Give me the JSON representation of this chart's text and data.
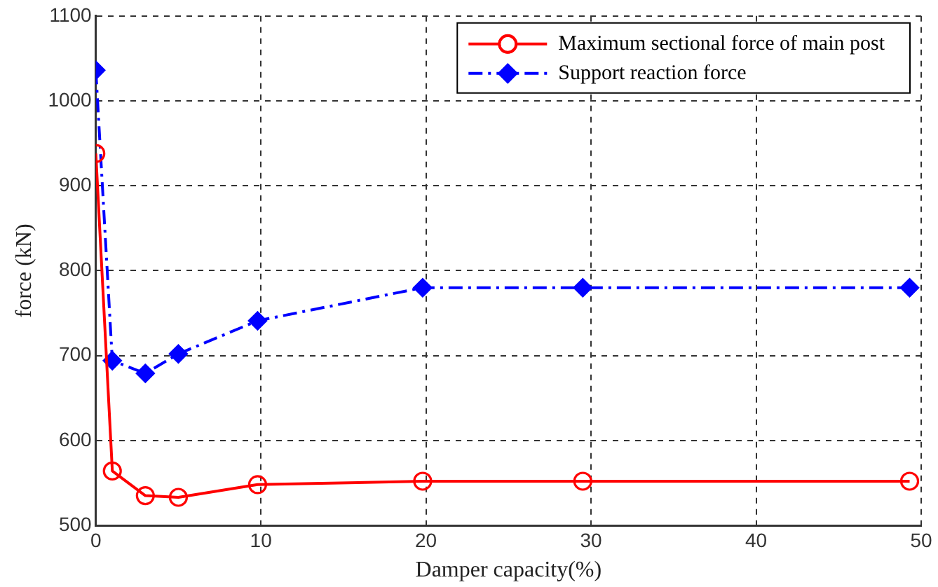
{
  "chart_data": {
    "type": "line",
    "xlabel": "Damper capacity(%)",
    "ylabel": "force (kN)",
    "xlim": [
      0,
      50
    ],
    "xticks": [
      0,
      10,
      20,
      30,
      40,
      50
    ],
    "ylim": [
      500,
      1100
    ],
    "yticks": [
      500,
      600,
      700,
      800,
      900,
      1000,
      1100
    ],
    "grid": true,
    "legend": "top right",
    "series": [
      {
        "name": "Maximum sectional force of main post",
        "color": "#ff0000",
        "marker": "circle",
        "line_style": "solid",
        "x": [
          0,
          1,
          3,
          5,
          9.8,
          19.8,
          29.5,
          49.3
        ],
        "values": [
          938,
          564,
          535,
          533,
          548,
          552,
          552,
          552
        ]
      },
      {
        "name": "Support reaction force",
        "color": "#0000ff",
        "marker": "diamond",
        "line_style": "dashed",
        "x": [
          0,
          1,
          3,
          5,
          9.8,
          19.8,
          29.5,
          49.3
        ],
        "values": [
          1036,
          694,
          679,
          702,
          741,
          780,
          780,
          780
        ]
      }
    ]
  }
}
